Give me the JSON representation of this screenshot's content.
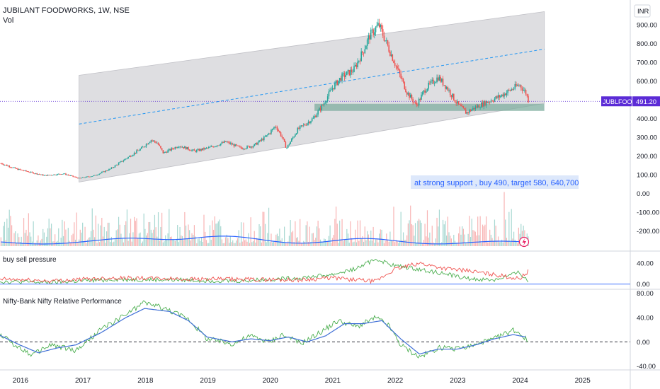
{
  "header": {
    "symbol_line": "JUBILANT FOODWORKS, 1W, NSE",
    "vol_label": "Vol"
  },
  "currency_badge": "INR",
  "price_tag": {
    "symbol": "JUBLFOOD",
    "price": "491.20"
  },
  "annotation_text": "at strong support , buy 490, target  580, 640,700",
  "colors": {
    "up": "#26a69a",
    "down": "#ef5350",
    "accent": "#2962ff",
    "tag": "#5b2bd6",
    "pink": "#e91e63"
  },
  "chart_data": [
    {
      "type": "candlestick",
      "title": "JUBILANT FOODWORKS, 1W, NSE",
      "x_ticks": [
        "2016",
        "2017",
        "2018",
        "2019",
        "2020",
        "2021",
        "2022",
        "2023",
        "2024",
        "2025"
      ],
      "y_ticks": [
        "900.00",
        "800.00",
        "700.00",
        "600.00",
        "500.00",
        "400.00",
        "300.00",
        "200.00",
        "100.00",
        "0.00",
        "-100.00",
        "-200.00"
      ],
      "ylim": [
        -240,
        960
      ],
      "last_price": 491.2,
      "price_path": [
        {
          "year": 2015.7,
          "close": 160
        },
        {
          "year": 2015.95,
          "close": 130
        },
        {
          "year": 2016.2,
          "close": 110
        },
        {
          "year": 2016.4,
          "close": 95
        },
        {
          "year": 2016.7,
          "close": 105
        },
        {
          "year": 2016.95,
          "close": 80
        },
        {
          "year": 2017.2,
          "close": 95
        },
        {
          "year": 2017.45,
          "close": 130
        },
        {
          "year": 2017.7,
          "close": 185
        },
        {
          "year": 2017.95,
          "close": 240
        },
        {
          "year": 2018.1,
          "close": 285
        },
        {
          "year": 2018.2,
          "close": 270
        },
        {
          "year": 2018.3,
          "close": 215
        },
        {
          "year": 2018.55,
          "close": 255
        },
        {
          "year": 2018.8,
          "close": 225
        },
        {
          "year": 2019.05,
          "close": 245
        },
        {
          "year": 2019.3,
          "close": 275
        },
        {
          "year": 2019.55,
          "close": 240
        },
        {
          "year": 2019.75,
          "close": 255
        },
        {
          "year": 2019.95,
          "close": 305
        },
        {
          "year": 2020.1,
          "close": 360
        },
        {
          "year": 2020.2,
          "close": 300
        },
        {
          "year": 2020.27,
          "close": 240
        },
        {
          "year": 2020.45,
          "close": 340
        },
        {
          "year": 2020.7,
          "close": 400
        },
        {
          "year": 2020.85,
          "close": 470
        },
        {
          "year": 2021.0,
          "close": 560
        },
        {
          "year": 2021.15,
          "close": 620
        },
        {
          "year": 2021.35,
          "close": 660
        },
        {
          "year": 2021.5,
          "close": 760
        },
        {
          "year": 2021.6,
          "close": 840
        },
        {
          "year": 2021.75,
          "close": 900
        },
        {
          "year": 2021.9,
          "close": 780
        },
        {
          "year": 2022.05,
          "close": 660
        },
        {
          "year": 2022.2,
          "close": 540
        },
        {
          "year": 2022.35,
          "close": 470
        },
        {
          "year": 2022.5,
          "close": 560
        },
        {
          "year": 2022.7,
          "close": 620
        },
        {
          "year": 2022.85,
          "close": 560
        },
        {
          "year": 2023.0,
          "close": 480
        },
        {
          "year": 2023.15,
          "close": 430
        },
        {
          "year": 2023.3,
          "close": 460
        },
        {
          "year": 2023.5,
          "close": 490
        },
        {
          "year": 2023.7,
          "close": 520
        },
        {
          "year": 2023.9,
          "close": 560
        },
        {
          "year": 2024.0,
          "close": 580
        },
        {
          "year": 2024.1,
          "close": 540
        },
        {
          "year": 2024.15,
          "close": 491.2
        }
      ],
      "regression_channel": {
        "x_start": 2016.95,
        "x_end": 2024.4,
        "upper": [
          630,
          970
        ],
        "mid": [
          370,
          770
        ],
        "lower": [
          60,
          480
        ]
      },
      "support_zone": {
        "x_start": 2020.72,
        "x_end": 2024.4,
        "low": 440,
        "high": 478
      }
    },
    {
      "type": "line",
      "title": "buy sell pressure",
      "y_ticks": [
        "40.00",
        "0.00"
      ],
      "ylim": [
        -5,
        62
      ],
      "series": [
        {
          "color": "#4caf50",
          "x": [
            2015.6,
            2016.5,
            2017.5,
            2018.5,
            2019.5,
            2020.5,
            2021.0,
            2021.4,
            2021.7,
            2022.0,
            2022.4,
            2022.8,
            2023.2,
            2023.6,
            2024.0,
            2024.15
          ],
          "values": [
            5,
            3,
            9,
            8,
            6,
            12,
            18,
            30,
            48,
            35,
            28,
            20,
            10,
            8,
            22,
            4
          ]
        },
        {
          "color": "#ef5350",
          "x": [
            2015.6,
            2016.5,
            2017.5,
            2018.5,
            2019.5,
            2020.5,
            2021.0,
            2021.4,
            2021.7,
            2022.0,
            2022.4,
            2022.8,
            2023.2,
            2023.6,
            2024.0,
            2024.15
          ],
          "values": [
            10,
            6,
            12,
            10,
            9,
            8,
            12,
            8,
            5,
            28,
            40,
            30,
            25,
            18,
            10,
            25
          ]
        }
      ]
    },
    {
      "type": "line",
      "title": "Nifty-Bank Nifty Relative Performance",
      "y_ticks": [
        "80.00",
        "40.00",
        "0.00",
        "-40.00"
      ],
      "ylim": [
        -45,
        85
      ],
      "series": [
        {
          "color": "#4caf50",
          "x": [
            2015.6,
            2016.0,
            2016.2,
            2016.5,
            2016.9,
            2017.3,
            2017.7,
            2018.0,
            2018.4,
            2018.7,
            2019.0,
            2019.4,
            2019.7,
            2020.0,
            2020.2,
            2020.5,
            2020.8,
            2021.1,
            2021.4,
            2021.7,
            2021.9,
            2022.1,
            2022.4,
            2022.7,
            2023.0,
            2023.3,
            2023.6,
            2023.9,
            2024.0,
            2024.15
          ],
          "values": [
            18,
            -10,
            -22,
            -5,
            -15,
            20,
            45,
            65,
            52,
            38,
            5,
            -3,
            10,
            0,
            12,
            -3,
            15,
            35,
            25,
            40,
            28,
            -5,
            -25,
            -10,
            -12,
            -5,
            5,
            20,
            15,
            0
          ]
        },
        {
          "color": "#3f6fd6",
          "x": [
            2015.6,
            2016.0,
            2016.3,
            2016.6,
            2016.9,
            2017.3,
            2017.7,
            2018.0,
            2018.4,
            2018.7,
            2019.0,
            2019.4,
            2019.7,
            2020.0,
            2020.3,
            2020.6,
            2020.9,
            2021.2,
            2021.5,
            2021.8,
            2022.1,
            2022.4,
            2022.7,
            2023.0,
            2023.3,
            2023.6,
            2023.9,
            2024.1
          ],
          "values": [
            15,
            -5,
            -18,
            -10,
            -5,
            15,
            40,
            55,
            50,
            35,
            8,
            0,
            5,
            2,
            8,
            0,
            10,
            30,
            30,
            35,
            5,
            -20,
            -12,
            -12,
            -5,
            5,
            12,
            8
          ]
        }
      ]
    }
  ]
}
